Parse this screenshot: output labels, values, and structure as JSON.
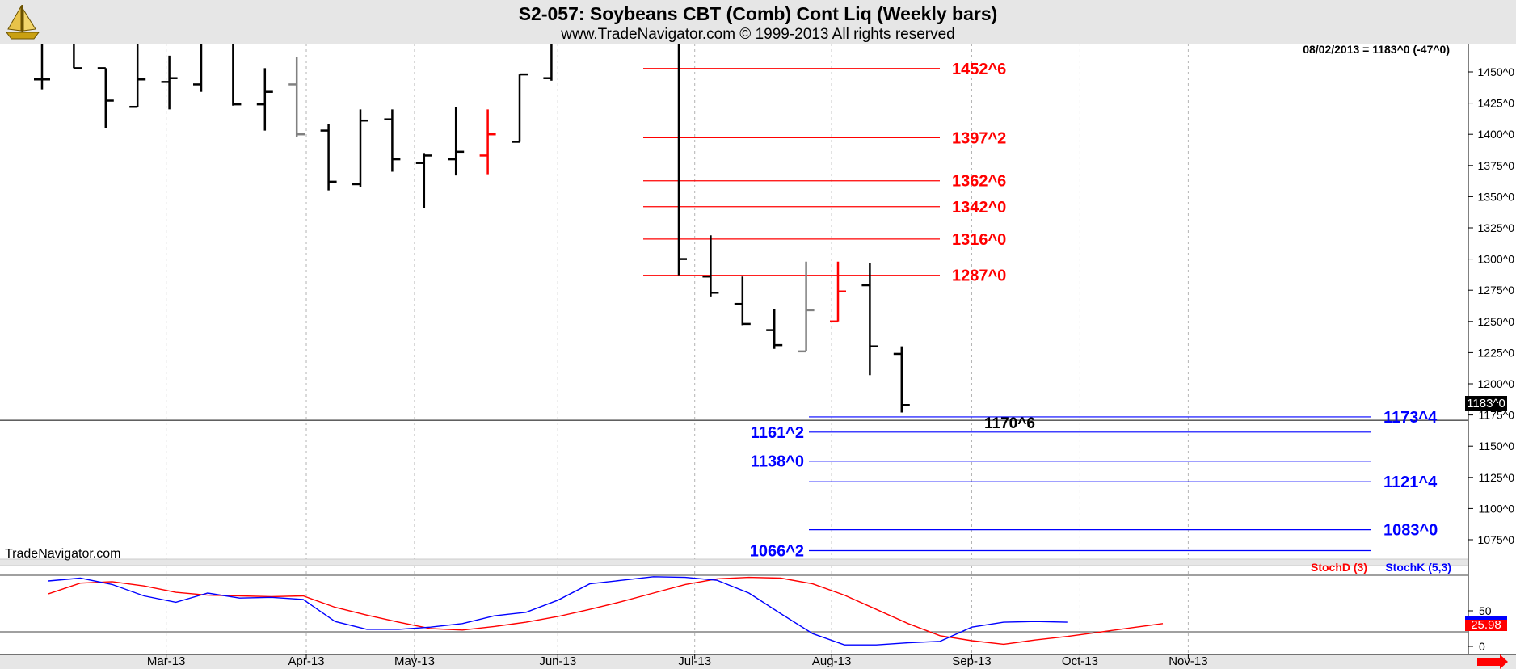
{
  "header": {
    "title": "S2-057:  Soybeans CBT (Comb) Cont Liq  (Weekly bars)",
    "subtitle": "www.TradeNavigator.com © 1999-2013 All rights reserved"
  },
  "watermark": "TradeNavigator.com",
  "last_quote": "08/02/2013 = 1183^0 (-47^0)",
  "current_price_tag": "1183^0",
  "stoch_value_tag": "25.98",
  "colors": {
    "up_bar": "#000000",
    "red_bar": "#ff0000",
    "gray_bar": "#808080",
    "resistance": "#ff0000",
    "support": "#0000ff",
    "stochD": "#ff0000",
    "stochK": "#0000ff",
    "background": "#ffffff",
    "frame": "#e6e6e6"
  },
  "icons": {
    "logo": "sailing-ship-logo-icon",
    "scroll": "right-arrow-icon"
  },
  "chart_data": [
    {
      "type": "ohlc",
      "title": "S2-057:  Soybeans CBT (Comb) Cont Liq  (Weekly bars)",
      "ylim": [
        1060,
        1480
      ],
      "y_ticks": [
        "1450^0",
        "1425^0",
        "1400^0",
        "1375^0",
        "1350^0",
        "1325^0",
        "1300^0",
        "1275^0",
        "1250^0",
        "1225^0",
        "1200^0",
        "1175^0",
        "1150^0",
        "1125^0",
        "1100^0",
        "1075^0"
      ],
      "y_tick_values": [
        1450,
        1425,
        1400,
        1375,
        1350,
        1325,
        1300,
        1275,
        1250,
        1225,
        1200,
        1175,
        1150,
        1125,
        1100,
        1075
      ],
      "x_labels": [
        "Mar-13",
        "Apr-13",
        "May-13",
        "Jun-13",
        "Jul-13",
        "Aug-13",
        "Sep-13",
        "Oct-13",
        "Nov-13"
      ],
      "bars": [
        {
          "i": 0,
          "h": 1480,
          "l": 1436,
          "o": 1444,
          "c": 1444,
          "color": "black"
        },
        {
          "i": 1,
          "h": 1480,
          "l": 1453,
          "o": 1480,
          "c": 1453,
          "color": "black"
        },
        {
          "i": 2,
          "h": 1453,
          "l": 1405,
          "o": 1453,
          "c": 1427,
          "color": "black"
        },
        {
          "i": 3,
          "h": 1480,
          "l": 1422,
          "o": 1422,
          "c": 1444,
          "color": "black"
        },
        {
          "i": 4,
          "h": 1463,
          "l": 1420,
          "o": 1442,
          "c": 1445,
          "color": "black"
        },
        {
          "i": 5,
          "h": 1480,
          "l": 1434,
          "o": 1440,
          "c": 1480,
          "color": "black"
        },
        {
          "i": 6,
          "h": 1480,
          "l": 1423,
          "o": 1480,
          "c": 1424,
          "color": "black"
        },
        {
          "i": 7,
          "h": 1453,
          "l": 1403,
          "o": 1424,
          "c": 1434,
          "color": "black"
        },
        {
          "i": 8,
          "h": 1462,
          "l": 1398,
          "o": 1440,
          "c": 1400,
          "color": "gray"
        },
        {
          "i": 9,
          "h": 1408,
          "l": 1355,
          "o": 1403,
          "c": 1362,
          "color": "black"
        },
        {
          "i": 10,
          "h": 1420,
          "l": 1358,
          "o": 1360,
          "c": 1411,
          "color": "black"
        },
        {
          "i": 11,
          "h": 1420,
          "l": 1370,
          "o": 1412,
          "c": 1380,
          "color": "black"
        },
        {
          "i": 12,
          "h": 1385,
          "l": 1341,
          "o": 1377,
          "c": 1383,
          "color": "black"
        },
        {
          "i": 13,
          "h": 1422,
          "l": 1367,
          "o": 1380,
          "c": 1386,
          "color": "black"
        },
        {
          "i": 14,
          "h": 1420,
          "l": 1368,
          "o": 1383,
          "c": 1400,
          "color": "red"
        },
        {
          "i": 15,
          "h": 1448,
          "l": 1394,
          "o": 1394,
          "c": 1448,
          "color": "black"
        },
        {
          "i": 16,
          "h": 1480,
          "l": 1443,
          "o": 1445,
          "c": 1480,
          "color": "black"
        },
        {
          "i": 20,
          "h": 1480,
          "l": 1287,
          "o": 1480,
          "c": 1300,
          "color": "black"
        },
        {
          "i": 21,
          "h": 1319,
          "l": 1270,
          "o": 1286,
          "c": 1273,
          "color": "black"
        },
        {
          "i": 22,
          "h": 1286,
          "l": 1247,
          "o": 1264,
          "c": 1248,
          "color": "black"
        },
        {
          "i": 23,
          "h": 1260,
          "l": 1228,
          "o": 1243,
          "c": 1231,
          "color": "black"
        },
        {
          "i": 24,
          "h": 1298,
          "l": 1226,
          "o": 1226,
          "c": 1259,
          "color": "gray"
        },
        {
          "i": 25,
          "h": 1298,
          "l": 1250,
          "o": 1250,
          "c": 1274,
          "color": "red"
        },
        {
          "i": 26,
          "h": 1297,
          "l": 1207,
          "o": 1279,
          "c": 1230,
          "color": "black"
        },
        {
          "i": 27,
          "h": 1230,
          "l": 1177,
          "o": 1224,
          "c": 1183,
          "color": "black"
        }
      ],
      "resistance_levels": [
        {
          "value": 1452.75,
          "label": "1452^6"
        },
        {
          "value": 1397.25,
          "label": "1397^2"
        },
        {
          "value": 1362.75,
          "label": "1362^6"
        },
        {
          "value": 1342.0,
          "label": "1342^0"
        },
        {
          "value": 1316.0,
          "label": "1316^0"
        },
        {
          "value": 1287.0,
          "label": "1287^0"
        }
      ],
      "support_levels": [
        {
          "value": 1173.5,
          "label": "1173^4",
          "side": "right"
        },
        {
          "value": 1161.25,
          "label": "1161^2",
          "side": "left"
        },
        {
          "value": 1138.0,
          "label": "1138^0",
          "side": "left"
        },
        {
          "value": 1121.5,
          "label": "1121^4",
          "side": "right"
        },
        {
          "value": 1083.0,
          "label": "1083^0",
          "side": "right"
        },
        {
          "value": 1066.25,
          "label": "1066^2",
          "side": "left"
        }
      ],
      "annotation": {
        "value": 1170.75,
        "label": "1170^6"
      },
      "horizontal_line": 1170.75
    },
    {
      "type": "line",
      "title": "",
      "ylim": [
        0,
        100
      ],
      "y_ticks": [
        "50",
        "0"
      ],
      "y_tick_values": [
        50,
        0
      ],
      "legend": [
        "StochD (3)",
        "StochK (5,3)"
      ],
      "series": [
        {
          "name": "StochD (3)",
          "color": "red",
          "values": [
            [
              0,
              74
            ],
            [
              1,
              89
            ],
            [
              2,
              91
            ],
            [
              3,
              85
            ],
            [
              4,
              76
            ],
            [
              5,
              72
            ],
            [
              6,
              71
            ],
            [
              7,
              70
            ],
            [
              8,
              71
            ],
            [
              9,
              55
            ],
            [
              10,
              44
            ],
            [
              11,
              34
            ],
            [
              12,
              25
            ],
            [
              13,
              23
            ],
            [
              14,
              28
            ],
            [
              15,
              34
            ],
            [
              16,
              42
            ],
            [
              17,
              52
            ],
            [
              18,
              63
            ],
            [
              19,
              75
            ],
            [
              20,
              87
            ],
            [
              21,
              95
            ],
            [
              22,
              97
            ],
            [
              23,
              96
            ],
            [
              24,
              88
            ],
            [
              25,
              72
            ],
            [
              26,
              52
            ],
            [
              27,
              32
            ],
            [
              28,
              15
            ],
            [
              29,
              8
            ],
            [
              30,
              3
            ],
            [
              31,
              9
            ],
            [
              32,
              14
            ],
            [
              33,
              20
            ],
            [
              34,
              26
            ],
            [
              35,
              32
            ]
          ]
        },
        {
          "name": "StochK (5,3)",
          "color": "blue",
          "values": [
            [
              0,
              92
            ],
            [
              1,
              96
            ],
            [
              2,
              87
            ],
            [
              3,
              71
            ],
            [
              4,
              62
            ],
            [
              5,
              75
            ],
            [
              6,
              68
            ],
            [
              7,
              69
            ],
            [
              8,
              66
            ],
            [
              9,
              35
            ],
            [
              10,
              24
            ],
            [
              11,
              24
            ],
            [
              12,
              27
            ],
            [
              13,
              32
            ],
            [
              14,
              43
            ],
            [
              15,
              48
            ],
            [
              16,
              65
            ],
            [
              17,
              88
            ],
            [
              18,
              93
            ],
            [
              19,
              98
            ],
            [
              20,
              97
            ],
            [
              21,
              93
            ],
            [
              22,
              75
            ],
            [
              23,
              46
            ],
            [
              24,
              18
            ],
            [
              25,
              2
            ],
            [
              26,
              2
            ],
            [
              27,
              5
            ],
            [
              28,
              7
            ],
            [
              29,
              27
            ],
            [
              30,
              34
            ],
            [
              31,
              35
            ],
            [
              32,
              34
            ]
          ]
        }
      ]
    }
  ]
}
